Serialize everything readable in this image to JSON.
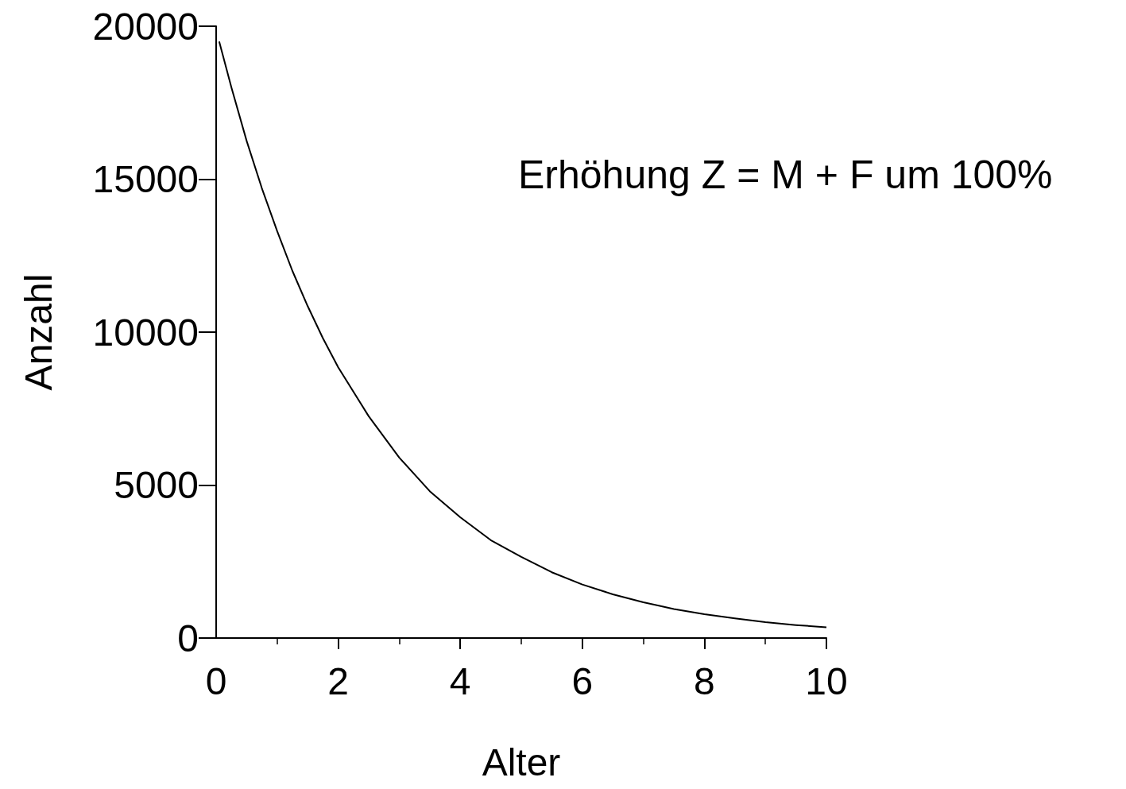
{
  "chart_data": {
    "type": "line",
    "xlabel": "Alter",
    "ylabel": "Anzahl",
    "annotations": [
      "Erhöhung Z = M + F um 100%"
    ],
    "series": [
      {
        "color": "#000000",
        "x": [
          0.05,
          0.25,
          0.5,
          0.75,
          1,
          1.25,
          1.5,
          1.75,
          2,
          2.5,
          3,
          3.5,
          4,
          4.5,
          5,
          5.5,
          6,
          6.5,
          7,
          7.5,
          8,
          8.5,
          9,
          9.5,
          10
        ],
        "values": [
          19500,
          18000,
          16250,
          14700,
          13300,
          12000,
          10850,
          9800,
          8850,
          7250,
          5900,
          4800,
          3950,
          3200,
          2650,
          2150,
          1750,
          1430,
          1170,
          950,
          780,
          640,
          520,
          425,
          350
        ]
      }
    ],
    "xlim": [
      0,
      10
    ],
    "xticks": [
      0,
      2,
      4,
      6,
      8,
      10
    ],
    "ylim": [
      0,
      20000
    ],
    "yticks": [
      0,
      5000,
      10000,
      15000,
      20000
    ],
    "grid": false,
    "marker": "none",
    "line_style": "solid"
  }
}
